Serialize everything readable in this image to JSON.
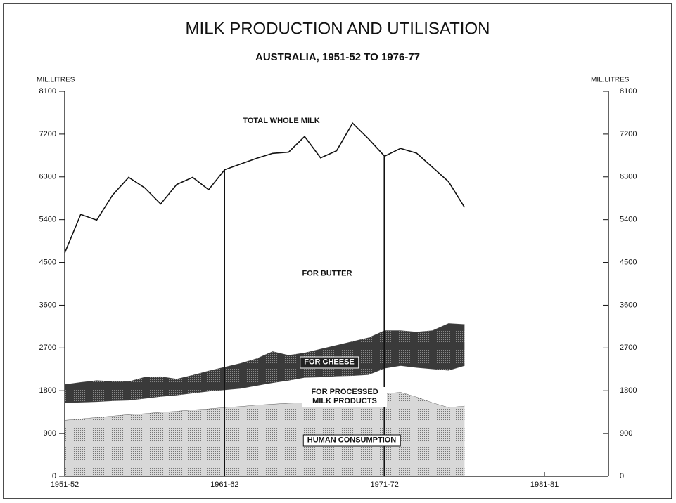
{
  "chart_data": {
    "type": "stacked_area",
    "title": "MILK PRODUCTION AND UTILISATION",
    "subtitle": "AUSTRALIA, 1951-52 TO 1976-77",
    "ylabel": "MIL.LITRES",
    "annotation": "TOTAL WHOLE MILK",
    "x": [
      1951,
      1952,
      1953,
      1954,
      1955,
      1956,
      1957,
      1958,
      1959,
      1960,
      1961,
      1962,
      1963,
      1964,
      1965,
      1966,
      1967,
      1968,
      1969,
      1970,
      1971,
      1972,
      1973,
      1974,
      1975,
      1976
    ],
    "xlim": [
      1951,
      1985
    ],
    "xticks": [
      {
        "value": 1951,
        "label": "1951-52"
      },
      {
        "value": 1961,
        "label": "1961-62"
      },
      {
        "value": 1971,
        "label": "1971-72"
      },
      {
        "value": 1981,
        "label": "1981-81"
      }
    ],
    "ylim": [
      0,
      8100
    ],
    "yticks": [
      0,
      900,
      1800,
      2700,
      3600,
      4500,
      5400,
      6300,
      7200,
      8100
    ],
    "series": [
      {
        "name": "HUMAN CONSUMPTION",
        "color": "#c4c4c4",
        "values": [
          1180,
          1210,
          1240,
          1270,
          1300,
          1320,
          1350,
          1370,
          1400,
          1420,
          1450,
          1470,
          1500,
          1520,
          1540,
          1550,
          1570,
          1590,
          1620,
          1650,
          1740,
          1770,
          1670,
          1550,
          1450,
          1480
        ]
      },
      {
        "name": "FOR PROCESSED MILK PRODUCTS",
        "color": "#ffffff",
        "values": [
          370,
          350,
          330,
          320,
          300,
          320,
          330,
          340,
          350,
          370,
          370,
          380,
          410,
          450,
          480,
          530,
          520,
          520,
          500,
          490,
          535,
          560,
          620,
          710,
          780,
          850
        ]
      },
      {
        "name": "FOR CHEESE",
        "color": "#4a4a4a",
        "values": [
          385,
          420,
          450,
          410,
          395,
          450,
          420,
          340,
          380,
          430,
          480,
          530,
          570,
          660,
          530,
          520,
          590,
          650,
          720,
          780,
          795,
          740,
          750,
          810,
          990,
          870
        ]
      },
      {
        "name": "FOR BUTTER",
        "color": "#ffffff",
        "values": [
          2765,
          3530,
          3370,
          3920,
          4295,
          3980,
          3630,
          4090,
          4160,
          3810,
          4150,
          4190,
          4210,
          4165,
          4270,
          4550,
          4020,
          4090,
          4590,
          4180,
          3665,
          3830,
          3760,
          3430,
          2980,
          2460
        ]
      }
    ]
  }
}
